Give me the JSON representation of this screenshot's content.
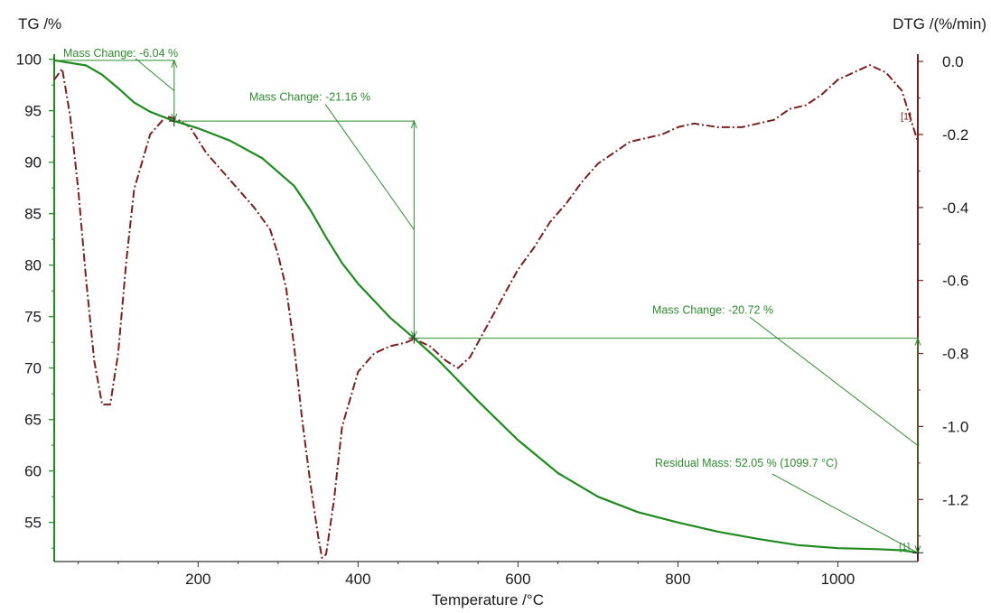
{
  "colors": {
    "tg": "#1f8a1f",
    "dtg": "#7a1f1f",
    "annotation": "#2e8b2e",
    "background": "#ffffff"
  },
  "chart_data": {
    "type": "line",
    "xlabel": "Temperature /°C",
    "ylabel_left": "TG /%",
    "ylabel_right": "DTG /(%/min)",
    "xlim": [
      20,
      1100
    ],
    "ylim_left": [
      51.2,
      100.5
    ],
    "ylim_right": [
      -1.37,
      0.02
    ],
    "x_ticks": [
      "200",
      "400",
      "600",
      "800",
      "1000"
    ],
    "y_left_ticks": [
      "100",
      "95",
      "90",
      "85",
      "80",
      "75",
      "70",
      "65",
      "60",
      "55"
    ],
    "y_right_ticks": [
      "0.0",
      "-0.2",
      "-0.4",
      "-0.6",
      "-0.8",
      "-1.0",
      "-1.2"
    ],
    "grid": false,
    "legend": "none",
    "series": [
      {
        "axis": "left",
        "style": "solid",
        "x": [
          20,
          60,
          80,
          100,
          120,
          140,
          160,
          170,
          200,
          240,
          280,
          320,
          340,
          360,
          380,
          400,
          440,
          470,
          500,
          550,
          600,
          650,
          700,
          750,
          800,
          850,
          900,
          950,
          1000,
          1050,
          1080,
          1100
        ],
        "y": [
          99.9,
          99.4,
          98.5,
          97.2,
          95.8,
          94.9,
          94.3,
          94.0,
          93.3,
          92.1,
          90.4,
          87.7,
          85.4,
          82.7,
          80.2,
          78.2,
          74.9,
          72.9,
          70.8,
          66.8,
          63.0,
          59.8,
          57.5,
          56.0,
          55.0,
          54.1,
          53.4,
          52.8,
          52.5,
          52.4,
          52.3,
          52.05
        ]
      },
      {
        "axis": "right",
        "style": "dash-dot",
        "x": [
          20,
          30,
          40,
          50,
          60,
          70,
          80,
          90,
          100,
          110,
          120,
          140,
          160,
          175,
          190,
          210,
          230,
          250,
          270,
          290,
          300,
          310,
          320,
          330,
          340,
          350,
          355,
          360,
          370,
          380,
          400,
          420,
          440,
          460,
          470,
          490,
          510,
          525,
          540,
          560,
          580,
          600,
          620,
          640,
          660,
          680,
          700,
          720,
          740,
          760,
          780,
          800,
          820,
          850,
          880,
          900,
          920,
          940,
          960,
          980,
          1000,
          1020,
          1040,
          1060,
          1080,
          1090,
          1100
        ],
        "y": [
          -0.05,
          -0.02,
          -0.15,
          -0.35,
          -0.6,
          -0.82,
          -0.94,
          -0.94,
          -0.8,
          -0.55,
          -0.35,
          -0.2,
          -0.15,
          -0.16,
          -0.18,
          -0.25,
          -0.3,
          -0.35,
          -0.4,
          -0.46,
          -0.53,
          -0.62,
          -0.78,
          -0.98,
          -1.15,
          -1.3,
          -1.36,
          -1.35,
          -1.2,
          -1.0,
          -0.85,
          -0.8,
          -0.78,
          -0.77,
          -0.76,
          -0.78,
          -0.82,
          -0.84,
          -0.81,
          -0.73,
          -0.65,
          -0.57,
          -0.51,
          -0.44,
          -0.39,
          -0.33,
          -0.28,
          -0.25,
          -0.22,
          -0.21,
          -0.2,
          -0.18,
          -0.17,
          -0.18,
          -0.18,
          -0.17,
          -0.16,
          -0.13,
          -0.12,
          -0.09,
          -0.05,
          -0.03,
          -0.01,
          -0.03,
          -0.08,
          -0.15,
          -0.22
        ]
      }
    ],
    "annotations": [
      {
        "text": "Mass Change: -6.04 %",
        "from_x": 20,
        "from_y": 99.9,
        "to_x": 170,
        "to_y": 94.0
      },
      {
        "text": "Mass Change: -21.16 %",
        "from_x": 170,
        "from_y": 94.0,
        "to_x": 470,
        "to_y": 72.9
      },
      {
        "text": "Mass Change: -20.72 %",
        "from_x": 470,
        "from_y": 72.9,
        "to_x": 1100,
        "to_y": 52.05
      },
      {
        "text": "Residual Mass: 52.05 % (1099.7 °C)",
        "at_x": 1100,
        "at_y": 52.05
      }
    ],
    "markers": [
      {
        "text": "[1]",
        "series": "dtg"
      },
      {
        "text": "[1]",
        "series": "tg"
      }
    ]
  }
}
